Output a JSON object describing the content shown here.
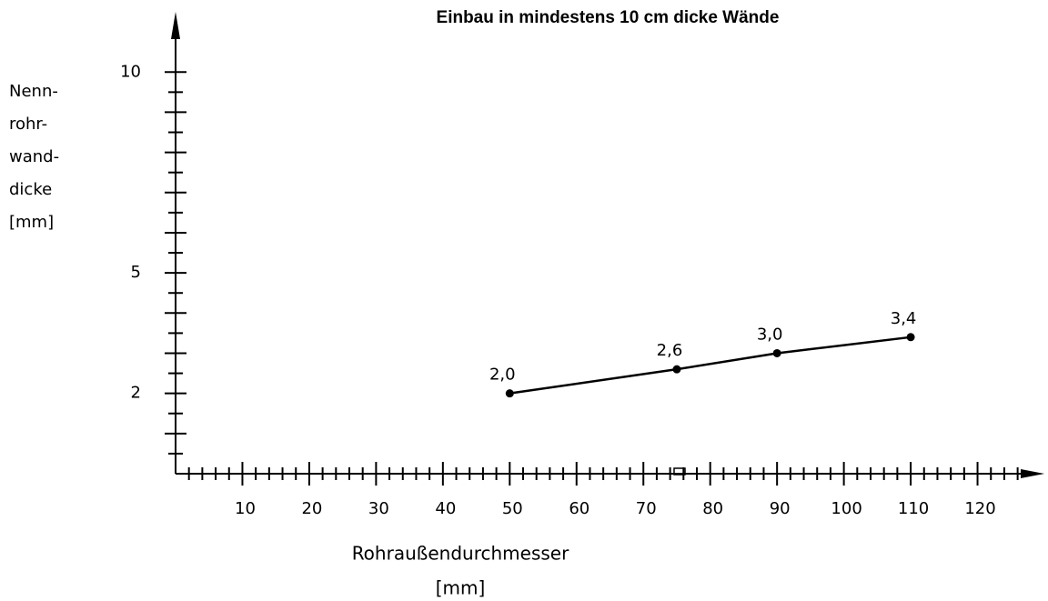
{
  "chart_data": {
    "type": "line",
    "title": "Einbau in mindestens 10 cm dicke Wände",
    "ylabel": [
      "Nenn-",
      "rohr-",
      "wand-",
      "dicke",
      "[mm]"
    ],
    "xlabel": [
      "Rohraußendurchmesser",
      "[mm]"
    ],
    "x": [
      50,
      75,
      90,
      110
    ],
    "values": [
      2.0,
      2.6,
      3.0,
      3.4
    ],
    "value_labels": [
      "2,0",
      "2,6",
      "3,0",
      "3,4"
    ],
    "color": "#000000",
    "xlim": [
      0,
      130
    ],
    "ylim": [
      0,
      11.5
    ],
    "xticks": [
      10,
      20,
      30,
      40,
      50,
      60,
      70,
      80,
      90,
      100,
      110,
      120
    ],
    "xminorticks": [
      2,
      4,
      6,
      8,
      12,
      14,
      16,
      18,
      22,
      24,
      26,
      28,
      32,
      34,
      36,
      38,
      42,
      44,
      46,
      48,
      52,
      54,
      56,
      58,
      62,
      64,
      66,
      68,
      72,
      74,
      76,
      78,
      82,
      84,
      86,
      88,
      92,
      94,
      96,
      98,
      102,
      104,
      106,
      108,
      112,
      114,
      116,
      118,
      122,
      124,
      126
    ],
    "yticks": [
      2,
      5,
      10
    ],
    "yminorticks": [
      0.5,
      1,
      1.5,
      2.5,
      3,
      3.5,
      4,
      4.5,
      5.5,
      6,
      6.5,
      7,
      7.5,
      8,
      8.5,
      9,
      9.5
    ],
    "grid": false
  }
}
